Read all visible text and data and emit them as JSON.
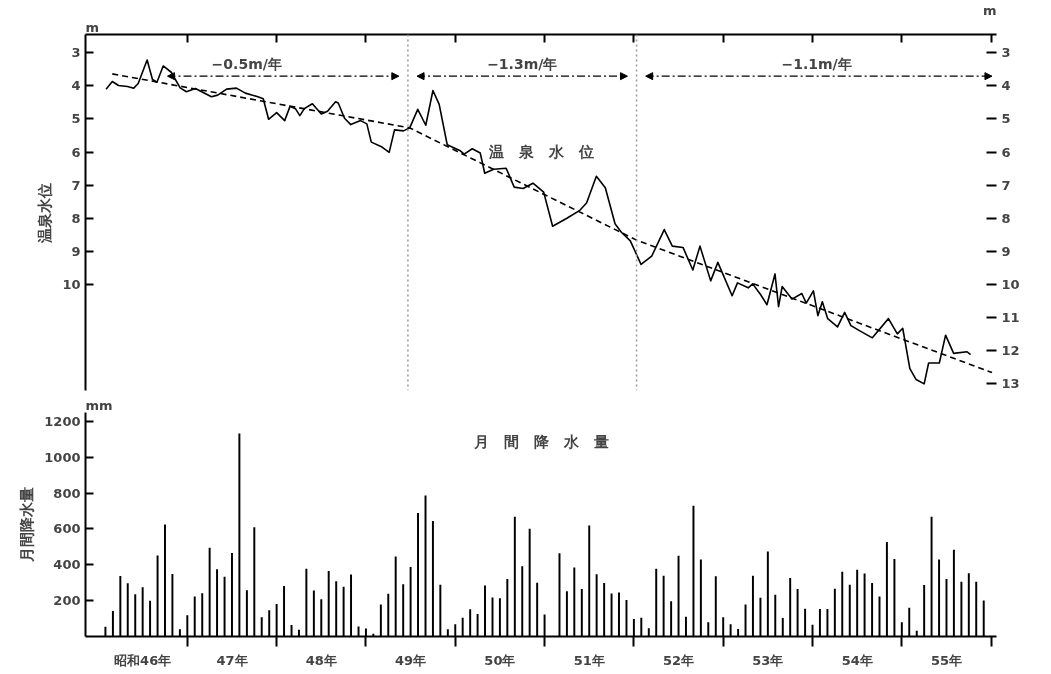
{
  "chart_data": [
    {
      "type": "line",
      "ylabel": "温泉水位",
      "xlim": [
        45.86,
        56.06
      ],
      "ylim": [
        13.2,
        2.45
      ],
      "yticks": [
        3,
        4,
        5,
        6,
        7,
        8,
        9,
        10
      ],
      "y2lim": [
        13.2,
        2.45
      ],
      "y2ticks": [
        3,
        4,
        5,
        6,
        7,
        8,
        9,
        10,
        11,
        12,
        13
      ],
      "xticks": [
        {
          "value": 47,
          "label": null
        },
        {
          "value": 48,
          "label": null
        },
        {
          "value": 49,
          "label": null
        },
        {
          "value": 50,
          "label": null
        },
        {
          "value": 51,
          "label": null
        },
        {
          "value": 52,
          "label": null
        },
        {
          "value": 53,
          "label": null
        },
        {
          "value": 54,
          "label": null
        },
        {
          "value": 55,
          "label": null
        },
        {
          "value": 56,
          "label": null
        }
      ],
      "tick_labels": "y",
      "series": [
        {
          "color": "#000000",
          "x": [
            46.09,
            46.16,
            46.23,
            46.33,
            46.4,
            46.45,
            46.55,
            46.61,
            46.66,
            46.73,
            46.82,
            46.92,
            46.99,
            47.09,
            47.27,
            47.34,
            47.44,
            47.55,
            47.65,
            47.79,
            47.85,
            47.91,
            48.0,
            48.09,
            48.15,
            48.21,
            48.26,
            48.31,
            48.4,
            48.5,
            48.57,
            48.66,
            48.69,
            48.76,
            48.83,
            48.94,
            49.01,
            49.06,
            49.18,
            49.26,
            49.32,
            49.42,
            49.49,
            49.58,
            49.67,
            49.75,
            49.82,
            49.91,
            50.05,
            50.1,
            50.19,
            50.28,
            50.33,
            50.43,
            50.57,
            50.66,
            50.76,
            50.87,
            50.99,
            51.09,
            51.25,
            51.39,
            51.47,
            51.58,
            51.68,
            51.79,
            51.86,
            51.96,
            52.08,
            52.2,
            52.34,
            52.43,
            52.55,
            52.66,
            52.74,
            52.86,
            52.94,
            53.1,
            53.16,
            53.28,
            53.33,
            53.42,
            53.49,
            53.58,
            53.62,
            53.66,
            53.77,
            53.88,
            53.93,
            54.01,
            54.06,
            54.11,
            54.17,
            54.28,
            54.36,
            54.43,
            54.53,
            54.67,
            54.85,
            54.95,
            55.01,
            55.09,
            55.16,
            55.25,
            55.3,
            55.42,
            55.49,
            55.58,
            55.73,
            55.77
          ],
          "values": [
            4.1,
            3.87,
            3.99,
            4.02,
            4.07,
            3.93,
            3.22,
            3.81,
            3.89,
            3.4,
            3.59,
            4.06,
            4.18,
            4.08,
            4.33,
            4.28,
            4.1,
            4.07,
            4.22,
            4.33,
            4.39,
            5.01,
            4.81,
            5.05,
            4.62,
            4.69,
            4.9,
            4.69,
            4.54,
            4.85,
            4.77,
            4.48,
            4.52,
            4.98,
            5.17,
            5.05,
            5.15,
            5.7,
            5.85,
            6.01,
            5.33,
            5.36,
            5.27,
            4.71,
            5.19,
            4.14,
            4.56,
            5.78,
            5.95,
            6.06,
            5.9,
            6.03,
            6.64,
            6.52,
            6.49,
            7.06,
            7.1,
            6.94,
            7.21,
            8.24,
            8.0,
            7.77,
            7.54,
            6.73,
            7.08,
            8.17,
            8.42,
            8.68,
            9.39,
            9.14,
            8.34,
            8.84,
            8.88,
            9.56,
            8.84,
            9.89,
            9.33,
            10.34,
            9.95,
            10.1,
            9.98,
            10.31,
            10.61,
            9.68,
            10.67,
            10.06,
            10.44,
            10.27,
            10.56,
            10.19,
            10.94,
            10.52,
            11.03,
            11.28,
            10.84,
            11.24,
            11.4,
            11.61,
            11.03,
            11.49,
            11.32,
            12.54,
            12.87,
            13.0,
            12.37,
            12.37,
            11.53,
            12.08,
            12.03,
            12.12
          ]
        },
        {
          "color": "#000000",
          "line_style": "dashed",
          "x": [
            46.16,
            49.49,
            52.03,
            56.01
          ],
          "values": [
            3.64,
            5.27,
            8.66,
            12.66
          ]
        }
      ],
      "ref_lines": [
        {
          "axis": "x",
          "value": 49.47,
          "line_style": "dotted",
          "color": "#999999"
        },
        {
          "axis": "x",
          "value": 52.03,
          "line_style": "dotted",
          "color": "#999999"
        }
      ],
      "annotations": [
        "−0.5m/年",
        "−1.3m/年",
        "−1.1m/年",
        "温　泉　水　位",
        "m",
        "m"
      ]
    },
    {
      "type": "bar",
      "ylabel": "月間降水量",
      "xlim": [
        45.86,
        56.06
      ],
      "ylim": [
        0,
        1250
      ],
      "yticks": [
        200,
        400,
        600,
        800,
        1000,
        1200
      ],
      "xticks": [
        {
          "value": 46.5,
          "label": "昭和46年"
        },
        {
          "value": 47.5,
          "label": "47年"
        },
        {
          "value": 48.5,
          "label": "48年"
        },
        {
          "value": 49.5,
          "label": "49年"
        },
        {
          "value": 50.5,
          "label": "50年"
        },
        {
          "value": 51.5,
          "label": "51年"
        },
        {
          "value": 52.5,
          "label": "52年"
        },
        {
          "value": 53.5,
          "label": "53年"
        },
        {
          "value": 54.5,
          "label": "54年"
        },
        {
          "value": 55.5,
          "label": "55年"
        },
        {
          "value": 47,
          "label": null
        },
        {
          "value": 48,
          "label": null
        },
        {
          "value": 49,
          "label": null
        },
        {
          "value": 50,
          "label": null
        },
        {
          "value": 51,
          "label": null
        },
        {
          "value": 52,
          "label": null
        },
        {
          "value": 53,
          "label": null
        },
        {
          "value": 54,
          "label": null
        },
        {
          "value": 55,
          "label": null
        },
        {
          "value": 56,
          "label": null
        }
      ],
      "x": [
        46.083,
        46.167,
        46.25,
        46.333,
        46.417,
        46.5,
        46.583,
        46.667,
        46.75,
        46.833,
        46.917,
        47,
        47.083,
        47.167,
        47.25,
        47.333,
        47.417,
        47.5,
        47.583,
        47.667,
        47.75,
        47.833,
        47.917,
        48,
        48.083,
        48.167,
        48.25,
        48.333,
        48.417,
        48.5,
        48.583,
        48.667,
        48.75,
        48.833,
        48.917,
        49,
        49.083,
        49.167,
        49.25,
        49.333,
        49.417,
        49.5,
        49.583,
        49.667,
        49.75,
        49.833,
        49.917,
        50,
        50.083,
        50.167,
        50.25,
        50.333,
        50.417,
        50.5,
        50.583,
        50.667,
        50.75,
        50.833,
        50.917,
        51,
        51.083,
        51.167,
        51.25,
        51.333,
        51.417,
        51.5,
        51.583,
        51.667,
        51.75,
        51.833,
        51.917,
        52,
        52.083,
        52.167,
        52.25,
        52.333,
        52.417,
        52.5,
        52.583,
        52.667,
        52.75,
        52.833,
        52.917,
        53,
        53.083,
        53.167,
        53.25,
        53.333,
        53.417,
        53.5,
        53.583,
        53.667,
        53.75,
        53.833,
        53.917,
        54,
        54.083,
        54.167,
        54.25,
        54.333,
        54.417,
        54.5,
        54.583,
        54.667,
        54.75,
        54.833,
        54.917,
        55,
        55.083,
        55.167,
        55.25,
        55.333,
        55.417,
        55.5,
        55.583,
        55.667,
        55.75,
        55.833,
        55.917
      ],
      "series": [
        {
          "color": "#000000",
          "values": [
            54,
            142,
            338,
            297,
            236,
            275,
            199,
            452,
            625,
            349,
            41,
            118,
            223,
            241,
            495,
            375,
            333,
            466,
            1133,
            258,
            609,
            108,
            147,
            182,
            282,
            64,
            37,
            378,
            257,
            208,
            365,
            309,
            277,
            346,
            56,
            44,
            15,
            179,
            238,
            447,
            292,
            388,
            689,
            787,
            645,
            289,
            41,
            68,
            105,
            152,
            125,
            285,
            218,
            214,
            321,
            668,
            392,
            601,
            300,
            123,
            null,
            464,
            252,
            385,
            265,
            620,
            348,
            299,
            240,
            245,
            204,
            98,
            105,
            46,
            378,
            339,
            197,
            451,
            110,
            729,
            429,
            79,
            336,
            108,
            68,
            42,
            179,
            339,
            216,
            474,
            233,
            103,
            327,
            265,
            155,
            66,
            154,
            154,
            267,
            361,
            289,
            373,
            351,
            299,
            223,
            528,
            432,
            79,
            160,
            32,
            287,
            668,
            430,
            321,
            484,
            306,
            353,
            306,
            201
          ]
        }
      ],
      "annotations": [
        "月　間　降　水　量",
        "mm"
      ]
    }
  ]
}
